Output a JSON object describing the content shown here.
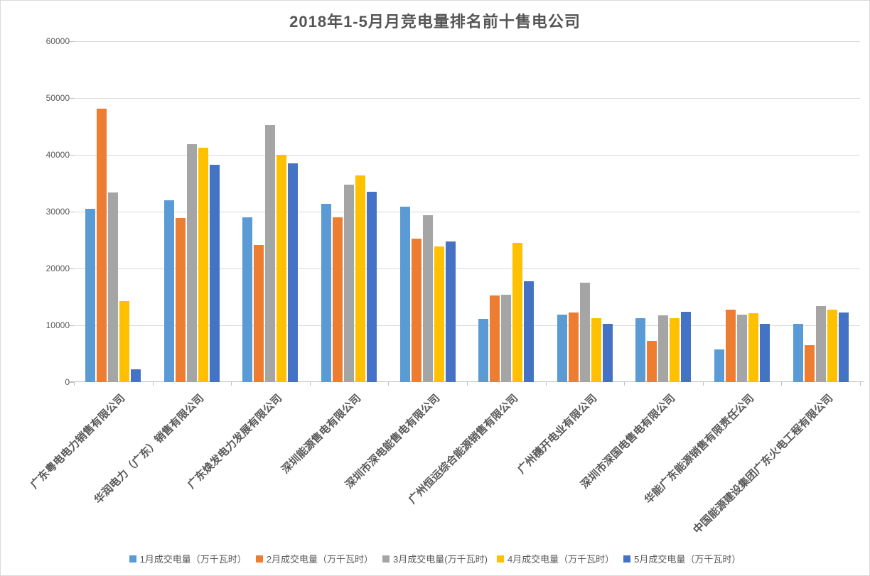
{
  "chart_data": {
    "type": "bar",
    "title": "2018年1-5月月竞电量排名前十售电公司",
    "categories": [
      "广东粤电电力销售有限公司",
      "华润电力（广东）销售有限公司",
      "广东焕发电力发展有限公司",
      "深圳能源售电有限公司",
      "深圳市深电能售电有限公司",
      "广州恒运综合能源销售有限公司",
      "广州穗开电业有限公司",
      "深圳市深国电售电有限公司",
      "华能广东能源销售有限责任公司",
      "中国能源建设集团广东火电工程有限公司"
    ],
    "series": [
      {
        "name": "1月成交电量（万千瓦时）",
        "color": "#5B9BD5",
        "values": [
          30500,
          32000,
          29000,
          31400,
          30900,
          11100,
          11900,
          11200,
          5800,
          10300
        ]
      },
      {
        "name": "2月成交电量（万千瓦时）",
        "color": "#ED7D31",
        "values": [
          48100,
          28900,
          24100,
          29000,
          25300,
          15200,
          12300,
          7200,
          12700,
          6500
        ]
      },
      {
        "name": "3月成交电量(万千瓦时)",
        "color": "#A5A5A5",
        "values": [
          33400,
          41900,
          45200,
          34700,
          29400,
          15400,
          17500,
          11800,
          11900,
          13400
        ]
      },
      {
        "name": "4月成交电量（万千瓦时）",
        "color": "#FFC000",
        "values": [
          14300,
          41200,
          40000,
          36400,
          23900,
          24500,
          11300,
          11200,
          12100,
          12700
        ]
      },
      {
        "name": "5月成交电量（万千瓦时）",
        "color": "#4472C4",
        "values": [
          2200,
          38300,
          38500,
          33500,
          24700,
          17800,
          10300,
          12400,
          10300,
          12300
        ]
      }
    ],
    "y_axis": {
      "min": 0,
      "max": 60000,
      "step": 10000,
      "tick_labels": [
        "0",
        "10000",
        "20000",
        "30000",
        "40000",
        "50000",
        "60000"
      ]
    },
    "x_label_rotation_deg": 45,
    "grid": true,
    "legend_position": "bottom"
  }
}
